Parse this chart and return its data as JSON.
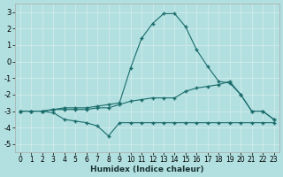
{
  "title": "",
  "xlabel": "Humidex (Indice chaleur)",
  "ylabel": "",
  "background_color": "#b2e0e0",
  "grid_color": "#c8e8e8",
  "line_color": "#1a6b6b",
  "xlim": [
    -0.5,
    23.5
  ],
  "ylim": [
    -5.5,
    3.5
  ],
  "xticks": [
    0,
    1,
    2,
    3,
    4,
    5,
    6,
    7,
    8,
    9,
    10,
    11,
    12,
    13,
    14,
    15,
    16,
    17,
    18,
    19,
    20,
    21,
    22,
    23
  ],
  "yticks": [
    -5,
    -4,
    -3,
    -2,
    -1,
    0,
    1,
    2,
    3
  ],
  "line1_x": [
    0,
    1,
    2,
    3,
    4,
    5,
    6,
    7,
    8,
    9,
    10,
    11,
    12,
    13,
    14,
    15,
    16,
    17,
    18,
    19,
    20,
    21,
    22,
    23
  ],
  "line1_y": [
    -3.0,
    -3.0,
    -3.0,
    -3.1,
    -3.5,
    -3.6,
    -3.7,
    -3.9,
    -4.5,
    -3.7,
    -3.7,
    -3.7,
    -3.7,
    -3.7,
    -3.7,
    -3.7,
    -3.7,
    -3.7,
    -3.7,
    -3.7,
    -3.7,
    -3.7,
    -3.7,
    -3.7
  ],
  "line2_x": [
    0,
    1,
    2,
    3,
    4,
    5,
    6,
    7,
    8,
    9,
    10,
    11,
    12,
    13,
    14,
    15,
    16,
    17,
    18,
    19,
    20,
    21,
    22,
    23
  ],
  "line2_y": [
    -3.0,
    -3.0,
    -3.0,
    -2.9,
    -2.9,
    -2.9,
    -2.9,
    -2.8,
    -2.8,
    -2.6,
    -2.4,
    -2.3,
    -2.2,
    -2.2,
    -2.2,
    -1.8,
    -1.6,
    -1.5,
    -1.4,
    -1.2,
    -2.0,
    -3.0,
    -3.0,
    -3.5
  ],
  "line3_x": [
    0,
    1,
    2,
    3,
    4,
    5,
    6,
    7,
    8,
    9,
    10,
    11,
    12,
    13,
    14,
    15,
    16,
    17,
    18,
    19,
    20,
    21,
    22,
    23
  ],
  "line3_y": [
    -3.0,
    -3.0,
    -3.0,
    -2.9,
    -2.8,
    -2.8,
    -2.8,
    -2.7,
    -2.6,
    -2.5,
    -0.4,
    1.4,
    2.3,
    2.9,
    2.9,
    2.1,
    0.7,
    -0.3,
    -1.2,
    -1.3,
    -2.0,
    -3.0,
    -3.0,
    -3.5
  ]
}
